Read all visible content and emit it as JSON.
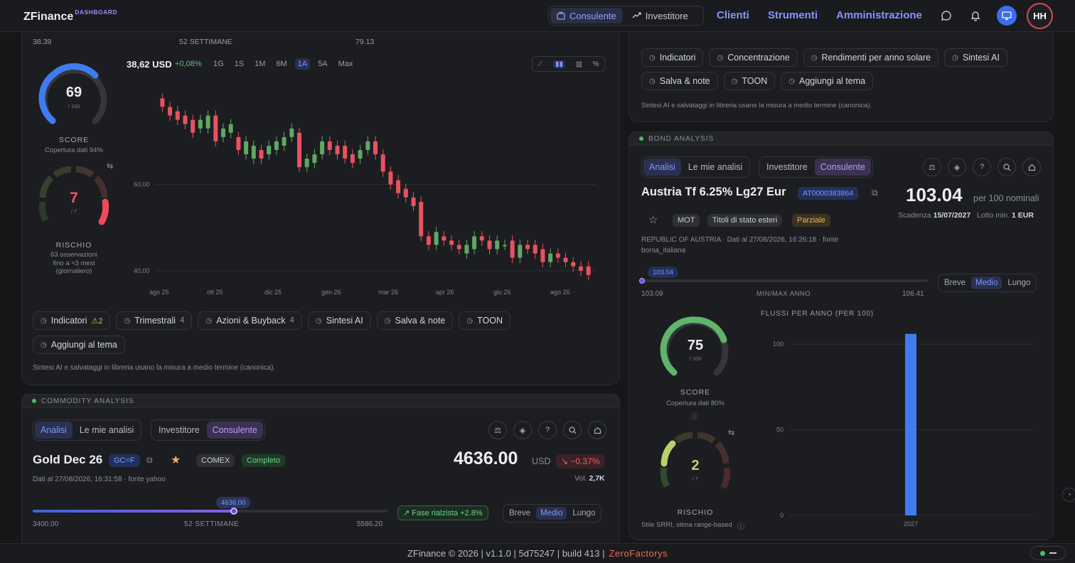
{
  "header": {
    "brand": "ZFinance",
    "brand_sup": "DASHBOARD",
    "modes": [
      {
        "label": "Consulente",
        "active": true
      },
      {
        "label": "Investitore",
        "active": false
      }
    ],
    "nav": [
      "Clienti",
      "Strumenti",
      "Amministrazione"
    ],
    "avatar": "HH"
  },
  "stock_card": {
    "range_low": "38.39",
    "range_label": "52 SETTIMANE",
    "range_high": "79.13",
    "score": {
      "value": "69",
      "max": "/ 100",
      "label": "SCORE",
      "coverage": "Copertura dati 94%",
      "fraction": 0.69
    },
    "risk": {
      "value": "7",
      "max": "/ 7",
      "label": "RISCHIO",
      "note1": "63 osservazioni",
      "note2": "fino a ≈3 mesi",
      "note3": "(giornaliero)"
    },
    "price": "38,62 USD",
    "change": "+0,08%",
    "periods": [
      "1G",
      "1S",
      "1M",
      "6M",
      "1A",
      "5A",
      "Max"
    ],
    "active_period": "1A",
    "chart_data": {
      "type": "candlestick",
      "y_ticks": [
        "60,00",
        "40,00"
      ],
      "x_ticks": [
        "ago 25",
        "ott 25",
        "dic 25",
        "gen 26",
        "mar 26",
        "apr 26",
        "giu 26",
        "ago 26"
      ],
      "ylim": [
        38,
        84
      ],
      "candles": [
        [
          80,
          78
        ],
        [
          78,
          76
        ],
        [
          77,
          75
        ],
        [
          76,
          74
        ],
        [
          75,
          72
        ],
        [
          73,
          75
        ],
        [
          73,
          76
        ],
        [
          76,
          70
        ],
        [
          71,
          73
        ],
        [
          72,
          74
        ],
        [
          71,
          68
        ],
        [
          67,
          70
        ],
        [
          66,
          69
        ],
        [
          68,
          66
        ],
        [
          67,
          69
        ],
        [
          68,
          70
        ],
        [
          69,
          71
        ],
        [
          71,
          73
        ],
        [
          72,
          64
        ],
        [
          64,
          66
        ],
        [
          65,
          67
        ],
        [
          67,
          70
        ],
        [
          70,
          68
        ],
        [
          69,
          67
        ],
        [
          69,
          66
        ],
        [
          67,
          65
        ],
        [
          66,
          68
        ],
        [
          68,
          70
        ],
        [
          70,
          67
        ],
        [
          67,
          63
        ],
        [
          63,
          60
        ],
        [
          61,
          58
        ],
        [
          59,
          57
        ],
        [
          57,
          55
        ],
        [
          56,
          48
        ],
        [
          48,
          46
        ],
        [
          46,
          49
        ],
        [
          48,
          47
        ],
        [
          47,
          46
        ],
        [
          46,
          45
        ],
        [
          44,
          46
        ],
        [
          45,
          48
        ],
        [
          48,
          47
        ],
        [
          47,
          45
        ],
        [
          45,
          47
        ],
        [
          46,
          46
        ],
        [
          47,
          43
        ],
        [
          43,
          46
        ],
        [
          46,
          45
        ],
        [
          46,
          44
        ],
        [
          45,
          42
        ],
        [
          42,
          44
        ],
        [
          44,
          43
        ],
        [
          43,
          42
        ],
        [
          42,
          41
        ],
        [
          41,
          40
        ],
        [
          41,
          39
        ]
      ]
    },
    "pills": [
      {
        "label": "Indicatori",
        "warn": "⚠2"
      },
      {
        "label": "Trimestrali",
        "count": "4"
      },
      {
        "label": "Azioni & Buyback",
        "count": "4"
      },
      {
        "label": "Sintesi AI"
      },
      {
        "label": "Salva & note"
      },
      {
        "label": "TOON"
      },
      {
        "label": "Aggiungi al tema"
      }
    ],
    "footnote": "Sintesi AI e salvataggi in libreria usano la misura a medio termine (canonica)."
  },
  "right_top": {
    "pills": [
      {
        "label": "Indicatori"
      },
      {
        "label": "Concentrazione"
      },
      {
        "label": "Rendimenti per anno solare"
      },
      {
        "label": "Sintesi AI"
      },
      {
        "label": "Salva & note"
      },
      {
        "label": "TOON"
      },
      {
        "label": "Aggiungi al tema"
      }
    ],
    "footnote": "Sintesi AI e salvataggi in libreria usano la misura a medio termine (canonica)."
  },
  "bond": {
    "section": "BOND ANALYSIS",
    "tabs1": [
      "Analisi",
      "Le mie analisi"
    ],
    "tabs2": [
      "Investitore",
      "Consulente"
    ],
    "title": "Austria Tf 6.25% Lg27 Eur",
    "isin": "AT0000383864",
    "price": "103.04",
    "price_unit": "per 100 nominali",
    "maturity_label": "Scadenza",
    "maturity": "15/07/2027",
    "lot_label": "Lotto min.",
    "lot": "1 EUR",
    "badges": [
      "MOT",
      "Titoli di stato esteri",
      "Parziale"
    ],
    "info1": "REPUBLIC OF AUSTRIA · Dati al 27/08/2026, 16:26:18 · fonte",
    "info2": "borsa_italiana",
    "slider_value": "103.04",
    "slider_low": "103.09",
    "slider_label": "MIN/MAX ANNO",
    "slider_high": "106.41",
    "slider_fraction": 0.0,
    "horizons": [
      "Breve",
      "Medio",
      "Lungo"
    ],
    "horizon_active": "Medio",
    "score": {
      "value": "75",
      "max": "/ 100",
      "label": "SCORE",
      "coverage": "Copertura dati 80%",
      "fraction": 0.75
    },
    "risk": {
      "value": "2",
      "max": "/ 7",
      "label": "RISCHIO",
      "note": "Stile SRRI, stima range-based"
    },
    "chart_data": {
      "type": "bar",
      "title": "FLUSSI PER ANNO (PER 100)",
      "categories": [
        "2027"
      ],
      "values": [
        106
      ],
      "ylim": [
        0,
        110
      ],
      "y_ticks": [
        0,
        50,
        100
      ]
    }
  },
  "commodity": {
    "section": "COMMODITY ANALYSIS",
    "tabs1": [
      "Analisi",
      "Le mie analisi"
    ],
    "tabs2": [
      "Investitore",
      "Consulente"
    ],
    "title": "Gold Dec 26",
    "ticker": "GC=F",
    "exchange": "COMEX",
    "status": "Completo",
    "info": "Dati al 27/08/2026, 16:31:58 · fonte yahoo",
    "price": "4636.00",
    "currency": "USD",
    "change": "↘ −0.37%",
    "vol_label": "Vol.",
    "vol": "2,7K",
    "slider_value": "4636.00",
    "slider_low": "3400.00",
    "slider_label": "52 SETTIMANE",
    "slider_high": "5586.20",
    "slider_fraction": 0.565,
    "phase": "↗ Fase rialzista +2.8%",
    "horizons": [
      "Breve",
      "Medio",
      "Lungo"
    ],
    "horizon_active": "Medio"
  },
  "footer": {
    "text": "ZFinance © 2026 | v1.1.0 | 5d75247 | build 413 |",
    "company": "ZeroFactorys"
  }
}
